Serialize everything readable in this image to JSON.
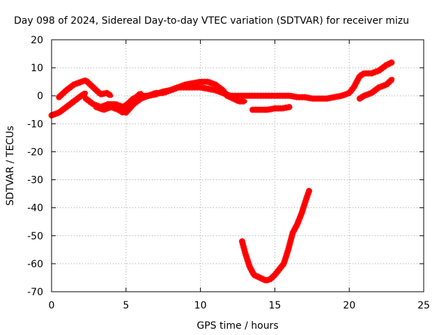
{
  "chart_data": {
    "type": "line",
    "title": "Day 098 of 2024, Sidereal Day-to-day VTEC variation (SDTVAR) for receiver mizu",
    "xlabel": "GPS time / hours",
    "ylabel": "SDTVAR / TECUs",
    "xlim": [
      0,
      25
    ],
    "ylim": [
      -70,
      20
    ],
    "xticks": [
      0,
      5,
      10,
      15,
      20,
      25
    ],
    "yticks": [
      20,
      10,
      0,
      -10,
      -20,
      -30,
      -40,
      -50,
      -60,
      -70
    ],
    "grid": true,
    "color": "#ff0000",
    "series": [
      {
        "name": "segment-a",
        "x": [
          0.0,
          0.5,
          1.0,
          1.5,
          2.0,
          2.3
        ],
        "y": [
          -7,
          -6,
          -4,
          -2,
          0,
          1
        ]
      },
      {
        "name": "segment-b",
        "x": [
          0.5,
          1.0,
          1.5,
          2.0,
          2.3,
          2.6,
          3.0,
          3.3,
          3.7,
          4.0
        ],
        "y": [
          -0.5,
          2,
          4,
          5,
          5.5,
          4,
          2,
          0.5,
          1,
          0
        ]
      },
      {
        "name": "segment-c",
        "x": [
          2.3,
          2.8,
          3.3,
          3.8,
          4.3,
          4.8,
          5.1,
          5.5,
          6.0,
          6.5,
          7.0,
          7.5,
          8.0,
          8.5,
          9.0,
          9.5,
          10.0,
          10.5,
          11.0,
          11.5,
          12.0,
          12.5,
          13.0,
          13.5,
          14.0,
          14.5,
          15.0,
          15.5,
          16.0,
          16.5,
          17.0,
          17.5,
          18.0,
          18.5,
          19.0,
          19.5,
          20.0,
          20.3,
          20.7,
          21.0,
          21.5,
          22.0,
          22.5,
          22.9
        ],
        "y": [
          -1,
          -3,
          -4,
          -3,
          -3,
          -4,
          -3,
          -1,
          0,
          0,
          1,
          1,
          2,
          3,
          3,
          3,
          3,
          2.5,
          2,
          1,
          0,
          0,
          0,
          0,
          0,
          0,
          0,
          0,
          0,
          -0.5,
          -0.5,
          -1,
          -1,
          -1,
          -0.5,
          0,
          1,
          3,
          7,
          8,
          8,
          9,
          11,
          12
        ]
      },
      {
        "name": "segment-d",
        "x": [
          3.0,
          3.5,
          4.0,
          4.5,
          4.8,
          5.2,
          5.6,
          6.0
        ],
        "y": [
          -4,
          -5,
          -4,
          -5,
          -6,
          -3,
          -1,
          1
        ]
      },
      {
        "name": "segment-e",
        "x": [
          5.0,
          5.5,
          6.0,
          6.5,
          7.0,
          7.5,
          8.0,
          8.5,
          9.0,
          9.5,
          10.0,
          10.5,
          11.0,
          11.5,
          11.8,
          12.2,
          12.6,
          13.0
        ],
        "y": [
          -6,
          -3,
          -1,
          0,
          0.5,
          1.5,
          2,
          3,
          4,
          4.5,
          5,
          5,
          4,
          2,
          0,
          -1,
          -2,
          -2
        ]
      },
      {
        "name": "segment-f",
        "x": [
          13.5,
          14.0,
          14.5,
          15.0,
          15.5,
          16.0
        ],
        "y": [
          -5,
          -5,
          -5,
          -4.5,
          -4.5,
          -4
        ]
      },
      {
        "name": "segment-g",
        "x": [
          20.7,
          21.0,
          21.5,
          22.0,
          22.5,
          22.9
        ],
        "y": [
          -1,
          0,
          1,
          3,
          4,
          6
        ]
      },
      {
        "name": "segment-h",
        "x": [
          12.8,
          13.0,
          13.3,
          13.6,
          14.0,
          14.4,
          14.7,
          15.0,
          15.3,
          15.6,
          15.9,
          16.2,
          16.5,
          16.8,
          17.1,
          17.3
        ],
        "y": [
          -52,
          -56,
          -61,
          -64,
          -65,
          -66,
          -65.5,
          -64,
          -62,
          -60,
          -55,
          -49,
          -46,
          -42,
          -37,
          -34
        ]
      }
    ]
  }
}
